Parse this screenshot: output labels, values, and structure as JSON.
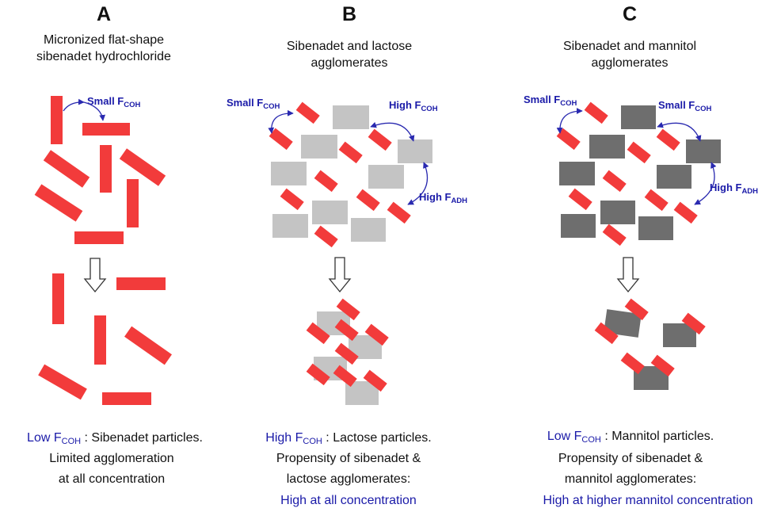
{
  "panels": [
    {
      "letter": "A",
      "title_lines": [
        "Micronized flat-shape",
        "sibenadet hydrochloride"
      ],
      "forces": [
        {
          "base": "Small F",
          "sub": "COH"
        }
      ],
      "caption": {
        "blue_base": "Low F",
        "blue_sub": "COH",
        "rest": " : Sibenadet particles.",
        "lines": [
          "Limited agglomeration",
          "at all concentration"
        ],
        "blue_line": ""
      }
    },
    {
      "letter": "B",
      "title_lines": [
        "Sibenadet and lactose",
        "agglomerates"
      ],
      "forces": [
        {
          "base": "Small F",
          "sub": "COH"
        },
        {
          "base": "High F",
          "sub": "COH"
        },
        {
          "base": "High F",
          "sub": "ADH"
        }
      ],
      "caption": {
        "blue_base": "High F",
        "blue_sub": "COH",
        "rest": " : Lactose particles.",
        "lines": [
          "Propensity of sibenadet &",
          "lactose agglomerates:"
        ],
        "blue_line": "High at all concentration"
      }
    },
    {
      "letter": "C",
      "title_lines": [
        "Sibenadet and mannitol",
        "agglomerates"
      ],
      "forces": [
        {
          "base": "Small F",
          "sub": "COH"
        },
        {
          "base": "Small F",
          "sub": "COH"
        },
        {
          "base": "High F",
          "sub": "ADH"
        }
      ],
      "caption": {
        "blue_base": "Low F",
        "blue_sub": "COH",
        "rest": " : Mannitol particles.",
        "lines": [
          "Propensity of sibenadet &",
          "mannitol agglomerates:"
        ],
        "blue_line": "High at higher mannitol concentration"
      }
    }
  ],
  "colors": {
    "sibenadet": "#f23b3b",
    "lactose": "#c4c4c4",
    "mannitol": "#6e6e6e",
    "force_text": "#1a1aa8"
  }
}
